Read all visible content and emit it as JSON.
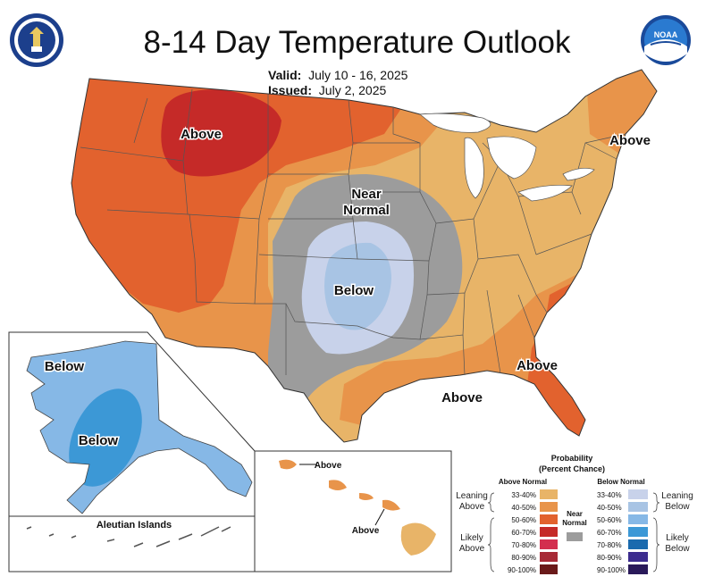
{
  "header": {
    "title": "8-14 Day Temperature Outlook",
    "valid_label": "Valid:",
    "valid_value": "July 10 - 16, 2025",
    "issued_label": "Issued:",
    "issued_value": "July 2, 2025"
  },
  "logos": {
    "left": "seal-icon",
    "right": "noaa-logo-icon"
  },
  "map_labels": {
    "above_north": "Above",
    "above_ne": "Above",
    "near_normal_1": "Near",
    "near_normal_2": "Normal",
    "below_plains": "Below",
    "above_se": "Above",
    "above_gulf": "Above",
    "alaska_below_w": "Below",
    "alaska_below_c": "Below",
    "aleutian": "Aleutian Islands",
    "hawaii_above_1": "Above",
    "hawaii_above_2": "Above"
  },
  "legend": {
    "title1": "Probability",
    "title2": "(Percent Chance)",
    "above_header": "Above Normal",
    "below_header": "Below Normal",
    "near_header1": "Near",
    "near_header2": "Normal",
    "leaning_above1": "Leaning",
    "leaning_above2": "Above",
    "likely_above1": "Likely",
    "likely_above2": "Above",
    "leaning_below1": "Leaning",
    "leaning_below2": "Below",
    "likely_below1": "Likely",
    "likely_below2": "Below",
    "above_bins": [
      "33-40%",
      "40-50%",
      "50-60%",
      "60-70%",
      "70-80%",
      "80-90%",
      "90-100%"
    ],
    "below_bins": [
      "33-40%",
      "40-50%",
      "50-60%",
      "60-70%",
      "70-80%",
      "80-90%",
      "90-100%"
    ],
    "above_colors": [
      "#e8b468",
      "#e8944a",
      "#e2622e",
      "#c52a28",
      "#d32f4f",
      "#a72a36",
      "#6a1a1a"
    ],
    "below_colors": [
      "#c8d2ea",
      "#a8c4e4",
      "#86b8e6",
      "#3c98d6",
      "#1a6aae",
      "#3c2c8e",
      "#2a1a5a"
    ],
    "near_color": "#9c9c9c"
  },
  "colors": {
    "above_33": "#e8b468",
    "above_40": "#e8944a",
    "above_50": "#e2622e",
    "above_60": "#c52a28",
    "below_33": "#c8d2ea",
    "below_40": "#a8c4e4",
    "below_50": "#86b8e6",
    "below_60": "#3c98d6",
    "near": "#9c9c9c"
  }
}
